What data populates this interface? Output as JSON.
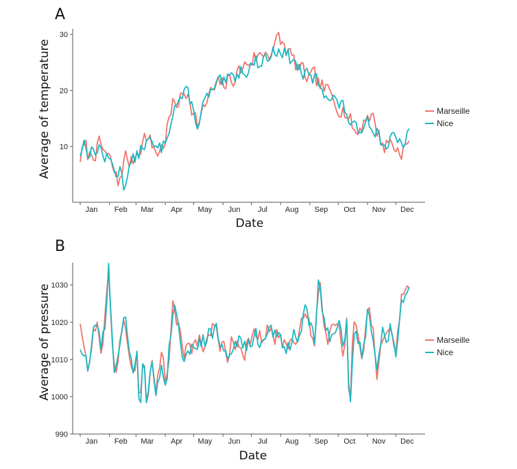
{
  "chart_data": [
    {
      "type": "line",
      "panel_label": "A",
      "xlabel": "Date",
      "ylabel": "Average  of temperature",
      "x_ticks": [
        "Jan",
        "Feb",
        "Mar",
        "Apr",
        "May",
        "Jun",
        "Jul",
        "Aug",
        "Sep",
        "Oct",
        "Nov",
        "Dec"
      ],
      "y_ticks": [
        10,
        20,
        30
      ],
      "ylim": [
        0,
        31
      ],
      "xlim_day": [
        -8,
        365
      ],
      "legend_position": "right",
      "colors": {
        "Marseille": "#f0736a",
        "Nice": "#1ab7c3"
      },
      "series": [
        {
          "name": "Marseille",
          "anchors": [
            [
              0,
              8
            ],
            [
              5,
              10
            ],
            [
              9,
              8
            ],
            [
              14,
              9
            ],
            [
              20,
              10
            ],
            [
              26,
              9
            ],
            [
              32,
              7
            ],
            [
              37,
              5
            ],
            [
              40,
              3
            ],
            [
              44,
              6
            ],
            [
              48,
              8
            ],
            [
              54,
              7
            ],
            [
              60,
              9
            ],
            [
              66,
              11
            ],
            [
              70,
              12
            ],
            [
              76,
              10
            ],
            [
              82,
              9
            ],
            [
              88,
              10
            ],
            [
              93,
              14
            ],
            [
              98,
              17
            ],
            [
              103,
              18
            ],
            [
              109,
              19
            ],
            [
              115,
              20
            ],
            [
              120,
              16
            ],
            [
              125,
              14
            ],
            [
              130,
              16
            ],
            [
              136,
              19
            ],
            [
              142,
              20
            ],
            [
              148,
              21
            ],
            [
              153,
              21
            ],
            [
              160,
              22
            ],
            [
              166,
              23
            ],
            [
              172,
              24
            ],
            [
              178,
              25
            ],
            [
              184,
              26
            ],
            [
              190,
              26
            ],
            [
              196,
              27
            ],
            [
              201,
              27
            ],
            [
              206,
              28
            ],
            [
              210,
              29
            ],
            [
              215,
              28
            ],
            [
              220,
              27
            ],
            [
              226,
              25
            ],
            [
              231,
              24
            ],
            [
              236,
              23
            ],
            [
              242,
              22
            ],
            [
              248,
              22
            ],
            [
              253,
              21
            ],
            [
              259,
              20
            ],
            [
              265,
              19
            ],
            [
              271,
              18
            ],
            [
              277,
              17
            ],
            [
              282,
              16
            ],
            [
              287,
              14
            ],
            [
              293,
              12
            ],
            [
              298,
              14
            ],
            [
              304,
              16
            ],
            [
              310,
              15
            ],
            [
              316,
              12
            ],
            [
              322,
              10
            ],
            [
              327,
              11
            ],
            [
              333,
              10
            ],
            [
              338,
              9
            ],
            [
              343,
              10
            ],
            [
              349,
              10
            ]
          ],
          "noise": 1.6,
          "seed": 7
        },
        {
          "name": "Nice",
          "anchors": [
            [
              0,
              9
            ],
            [
              5,
              11
            ],
            [
              9,
              9
            ],
            [
              14,
              9
            ],
            [
              20,
              10
            ],
            [
              26,
              8
            ],
            [
              32,
              7
            ],
            [
              37,
              6
            ],
            [
              40,
              5
            ],
            [
              44,
              6
            ],
            [
              47,
              2
            ],
            [
              50,
              6
            ],
            [
              55,
              7
            ],
            [
              60,
              8
            ],
            [
              66,
              10
            ],
            [
              70,
              11
            ],
            [
              76,
              10
            ],
            [
              82,
              9
            ],
            [
              88,
              10
            ],
            [
              93,
              13
            ],
            [
              98,
              17
            ],
            [
              103,
              18
            ],
            [
              109,
              19
            ],
            [
              115,
              19
            ],
            [
              120,
              16
            ],
            [
              125,
              14
            ],
            [
              130,
              17
            ],
            [
              136,
              19
            ],
            [
              142,
              20
            ],
            [
              148,
              21
            ],
            [
              153,
              21
            ],
            [
              160,
              22
            ],
            [
              166,
              23
            ],
            [
              172,
              24
            ],
            [
              178,
              24
            ],
            [
              184,
              25
            ],
            [
              190,
              25
            ],
            [
              196,
              26
            ],
            [
              201,
              26
            ],
            [
              206,
              27
            ],
            [
              210,
              28
            ],
            [
              215,
              27
            ],
            [
              220,
              26
            ],
            [
              226,
              25
            ],
            [
              231,
              24
            ],
            [
              236,
              23
            ],
            [
              242,
              22
            ],
            [
              248,
              22
            ],
            [
              253,
              21
            ],
            [
              259,
              20
            ],
            [
              265,
              19
            ],
            [
              271,
              18
            ],
            [
              277,
              17
            ],
            [
              282,
              16
            ],
            [
              287,
              14
            ],
            [
              293,
              12
            ],
            [
              298,
              14
            ],
            [
              304,
              15
            ],
            [
              310,
              14
            ],
            [
              316,
              12
            ],
            [
              322,
              10
            ],
            [
              327,
              11
            ],
            [
              333,
              11
            ],
            [
              338,
              10
            ],
            [
              343,
              11
            ],
            [
              349,
              12
            ]
          ],
          "noise": 1.4,
          "seed": 13
        }
      ]
    },
    {
      "type": "line",
      "panel_label": "B",
      "xlabel": "Date",
      "ylabel": "Average  of pressure",
      "x_ticks": [
        "Jan",
        "Feb",
        "Mar",
        "Apr",
        "May",
        "Jun",
        "Jul",
        "Aug",
        "Sep",
        "Oct",
        "Nov",
        "Dec"
      ],
      "y_ticks": [
        990,
        1000,
        1010,
        1020,
        1030
      ],
      "ylim": [
        990,
        1036
      ],
      "xlim_day": [
        -8,
        365
      ],
      "legend_position": "right",
      "colors": {
        "Marseille": "#f0736a",
        "Nice": "#1ab7c3"
      },
      "series": [
        {
          "name": "Marseille",
          "anchors": [
            [
              0,
              1021
            ],
            [
              4,
              1016
            ],
            [
              8,
              1008
            ],
            [
              12,
              1014
            ],
            [
              17,
              1020
            ],
            [
              22,
              1014
            ],
            [
              27,
              1022
            ],
            [
              30,
              1034
            ],
            [
              33,
              1015
            ],
            [
              37,
              1005
            ],
            [
              42,
              1017
            ],
            [
              47,
              1020
            ],
            [
              51,
              1012
            ],
            [
              55,
              1005
            ],
            [
              60,
              1012
            ],
            [
              63,
              997
            ],
            [
              67,
              1014
            ],
            [
              71,
              998
            ],
            [
              75,
              1010
            ],
            [
              80,
              1000
            ],
            [
              86,
              1012
            ],
            [
              91,
              1004
            ],
            [
              95,
              1016
            ],
            [
              99,
              1026
            ],
            [
              104,
              1018
            ],
            [
              109,
              1010
            ],
            [
              114,
              1015
            ],
            [
              120,
              1014
            ],
            [
              126,
              1016
            ],
            [
              132,
              1014
            ],
            [
              138,
              1018
            ],
            [
              144,
              1017
            ],
            [
              150,
              1014
            ],
            [
              156,
              1012
            ],
            [
              162,
              1016
            ],
            [
              168,
              1015
            ],
            [
              174,
              1013
            ],
            [
              180,
              1014
            ],
            [
              186,
              1016
            ],
            [
              192,
              1015
            ],
            [
              198,
              1017
            ],
            [
              204,
              1018
            ],
            [
              209,
              1016
            ],
            [
              214,
              1015
            ],
            [
              220,
              1014
            ],
            [
              226,
              1016
            ],
            [
              232,
              1019
            ],
            [
              238,
              1024
            ],
            [
              243,
              1018
            ],
            [
              248,
              1016
            ],
            [
              253,
              1032
            ],
            [
              258,
              1020
            ],
            [
              263,
              1016
            ],
            [
              268,
              1020
            ],
            [
              273,
              1022
            ],
            [
              278,
              1012
            ],
            [
              282,
              1022
            ],
            [
              285,
              993
            ],
            [
              289,
              1018
            ],
            [
              294,
              1014
            ],
            [
              299,
              1010
            ],
            [
              304,
              1024
            ],
            [
              309,
              1020
            ],
            [
              314,
              1006
            ],
            [
              319,
              1020
            ],
            [
              324,
              1015
            ],
            [
              329,
              1021
            ],
            [
              334,
              1012
            ],
            [
              339,
              1025
            ],
            [
              344,
              1028
            ],
            [
              349,
              1028
            ]
          ],
          "noise": 2.8,
          "seed": 21
        },
        {
          "name": "Nice",
          "anchors": [
            [
              0,
              1014
            ],
            [
              4,
              1012
            ],
            [
              8,
              1007
            ],
            [
              12,
              1014
            ],
            [
              17,
              1021
            ],
            [
              22,
              1013
            ],
            [
              27,
              1020
            ],
            [
              30,
              1035
            ],
            [
              33,
              1016
            ],
            [
              37,
              1004
            ],
            [
              42,
              1016
            ],
            [
              47,
              1022
            ],
            [
              51,
              1011
            ],
            [
              55,
              1006
            ],
            [
              60,
              1011
            ],
            [
              63,
              996
            ],
            [
              67,
              1015
            ],
            [
              71,
              997
            ],
            [
              75,
              1011
            ],
            [
              80,
              1001
            ],
            [
              86,
              1011
            ],
            [
              91,
              1005
            ],
            [
              95,
              1015
            ],
            [
              99,
              1027
            ],
            [
              104,
              1019
            ],
            [
              109,
              1011
            ],
            [
              114,
              1015
            ],
            [
              120,
              1013
            ],
            [
              126,
              1016
            ],
            [
              132,
              1014
            ],
            [
              138,
              1019
            ],
            [
              144,
              1017
            ],
            [
              150,
              1014
            ],
            [
              156,
              1012
            ],
            [
              162,
              1016
            ],
            [
              168,
              1015
            ],
            [
              174,
              1013
            ],
            [
              180,
              1014
            ],
            [
              186,
              1016
            ],
            [
              192,
              1014
            ],
            [
              198,
              1016
            ],
            [
              204,
              1017
            ],
            [
              209,
              1016
            ],
            [
              214,
              1015
            ],
            [
              220,
              1014
            ],
            [
              226,
              1016
            ],
            [
              232,
              1018
            ],
            [
              238,
              1023
            ],
            [
              243,
              1018
            ],
            [
              248,
              1016
            ],
            [
              253,
              1033
            ],
            [
              258,
              1020
            ],
            [
              263,
              1016
            ],
            [
              268,
              1019
            ],
            [
              273,
              1021
            ],
            [
              278,
              1012
            ],
            [
              282,
              1020
            ],
            [
              285,
              992
            ],
            [
              289,
              1017
            ],
            [
              294,
              1014
            ],
            [
              299,
              1010
            ],
            [
              304,
              1023
            ],
            [
              309,
              1019
            ],
            [
              314,
              1005
            ],
            [
              319,
              1019
            ],
            [
              324,
              1014
            ],
            [
              329,
              1020
            ],
            [
              334,
              1013
            ],
            [
              339,
              1024
            ],
            [
              344,
              1029
            ],
            [
              349,
              1028
            ]
          ],
          "noise": 2.6,
          "seed": 33
        }
      ]
    }
  ]
}
